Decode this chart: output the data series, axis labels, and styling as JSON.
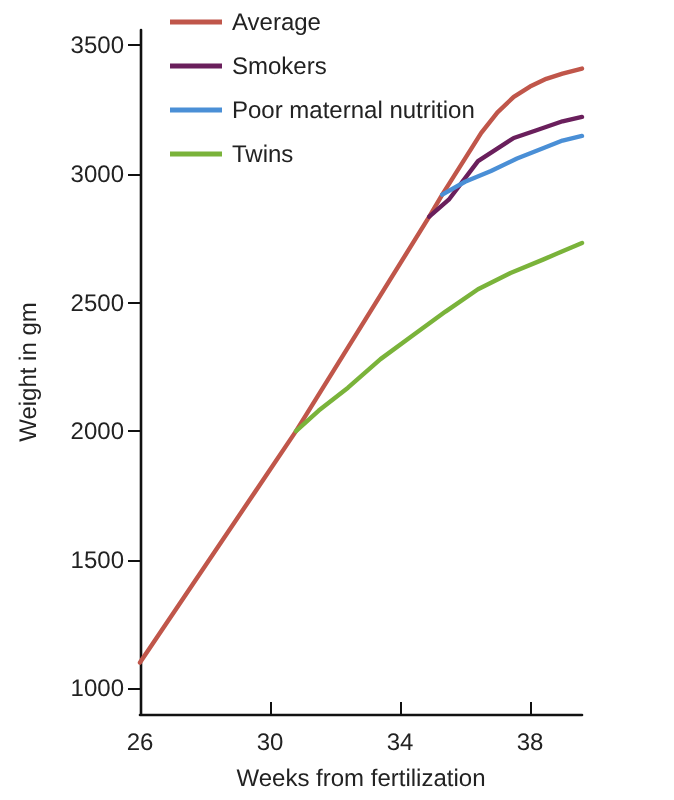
{
  "chart_data": {
    "type": "line",
    "xlabel": "Weeks from fertilization",
    "ylabel": "Weight in gm",
    "xlim": [
      26,
      39.6
    ],
    "xticks": [
      26,
      30,
      34,
      38
    ],
    "ylim": [
      900,
      3560
    ],
    "yticks": [
      1000,
      1500,
      2000,
      2500,
      3000,
      3500
    ],
    "grid": false,
    "legend": "top left",
    "marker": "none",
    "line_style": "solid",
    "series": [
      {
        "name": "Average",
        "color": "#c0564a",
        "x": [
          26,
          30.8,
          34.9,
          35.3,
          36,
          36.5,
          37,
          37.5,
          38,
          38.5,
          39,
          39.6
        ],
        "values": [
          1100,
          2000,
          2834,
          2920,
          3060,
          3160,
          3240,
          3300,
          3340,
          3370,
          3390,
          3410
        ]
      },
      {
        "name": "Smokers",
        "color": "#6a1f5c",
        "x": [
          34.9,
          35.5,
          36.4,
          37.5,
          38.2,
          39,
          39.6
        ],
        "values": [
          2834,
          2900,
          3050,
          3140,
          3170,
          3205,
          3222
        ]
      },
      {
        "name": "Poor maternal nutrition",
        "color": "#4a8fd6",
        "x": [
          35.3,
          36,
          36.8,
          37.6,
          38.4,
          39,
          39.6
        ],
        "values": [
          2920,
          2970,
          3012,
          3060,
          3100,
          3130,
          3148
        ]
      },
      {
        "name": "Twins",
        "color": "#7ab33a",
        "x": [
          30.8,
          31.5,
          32.4,
          33.4,
          34.4,
          35.4,
          36.4,
          37.4,
          38.4,
          39,
          39.6
        ],
        "values": [
          2000,
          2080,
          2169,
          2280,
          2373,
          2465,
          2552,
          2615,
          2667,
          2700,
          2732
        ]
      }
    ]
  }
}
